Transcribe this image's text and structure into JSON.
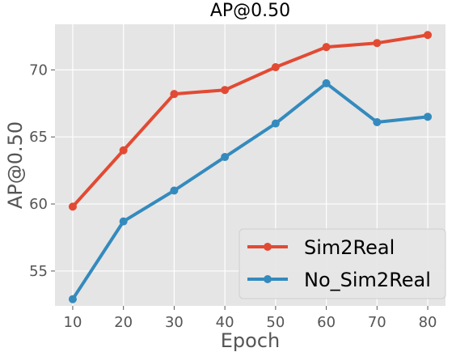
{
  "chart_data": {
    "type": "line",
    "title": "AP@0.50",
    "xlabel": "Epoch",
    "ylabel": "AP@0.50",
    "x": [
      10,
      20,
      30,
      40,
      50,
      60,
      70,
      80
    ],
    "xlim": [
      6.5,
      83.5
    ],
    "ylim": [
      52.4,
      73.4
    ],
    "xticks": [
      10,
      20,
      30,
      40,
      50,
      60,
      70,
      80
    ],
    "yticks": [
      55,
      60,
      65,
      70
    ],
    "grid": true,
    "legend_position": "lower right",
    "background": "#e5e5e5",
    "series": [
      {
        "name": "Sim2Real",
        "color": "#e24a33",
        "values": [
          59.8,
          64.0,
          68.2,
          68.5,
          70.2,
          71.7,
          72.0,
          72.6
        ]
      },
      {
        "name": "No_Sim2Real",
        "color": "#348abd",
        "values": [
          52.9,
          58.7,
          61.0,
          63.5,
          66.0,
          69.0,
          66.1,
          66.5
        ]
      }
    ]
  }
}
